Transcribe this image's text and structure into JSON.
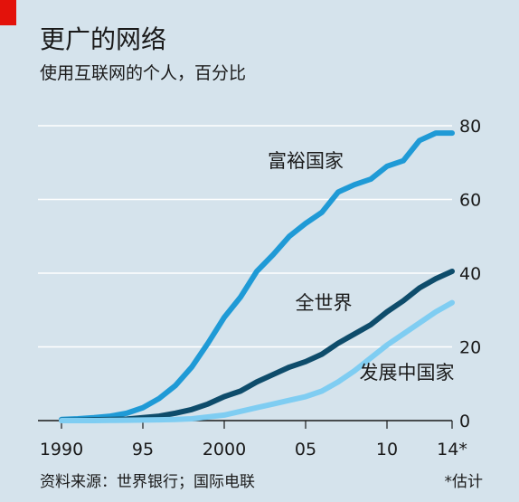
{
  "title": "更广的网络",
  "subtitle": "使用互联网的个人，百分比",
  "source": "资料来源：世界银行；国际电联",
  "footnote": "*估计",
  "colors": {
    "accent": "#e3120b",
    "background": "#d5e3ec"
  },
  "chart_data": {
    "type": "line",
    "x": [
      1990,
      1991,
      1992,
      1993,
      1994,
      1995,
      1996,
      1997,
      1998,
      1999,
      2000,
      2001,
      2002,
      2003,
      2004,
      2005,
      2006,
      2007,
      2008,
      2009,
      2010,
      2011,
      2012,
      2013,
      2014
    ],
    "x_tick_labels": [
      "1990",
      "95",
      "2000",
      "05",
      "10",
      "14*"
    ],
    "x_tick_values": [
      1990,
      1995,
      2000,
      2005,
      2010,
      2014
    ],
    "xlim": [
      1990,
      2014
    ],
    "ylim": [
      0,
      80
    ],
    "y_ticks": [
      0,
      20,
      40,
      60,
      80
    ],
    "y_tick_labels": [
      "0",
      "20",
      "40",
      "60",
      "80"
    ],
    "y_axis_side": "right",
    "grid": true,
    "series": [
      {
        "name": "富裕国家",
        "color": "#1f9ad6",
        "values": [
          0.3,
          0.5,
          0.8,
          1.2,
          2.0,
          3.5,
          6.0,
          9.5,
          14.5,
          21.0,
          28.0,
          33.5,
          40.5,
          45.0,
          50.0,
          53.5,
          56.5,
          62.0,
          64.0,
          65.5,
          69.0,
          70.5,
          76.0,
          78.0,
          78.0
        ]
      },
      {
        "name": "全世界",
        "color": "#0e4c6b",
        "values": [
          0.05,
          0.1,
          0.2,
          0.3,
          0.4,
          0.8,
          1.2,
          2.0,
          3.0,
          4.5,
          6.5,
          8.0,
          10.5,
          12.5,
          14.5,
          16.0,
          18.0,
          21.0,
          23.5,
          26.0,
          29.5,
          32.5,
          36.0,
          38.5,
          40.5
        ]
      },
      {
        "name": "发展中国家",
        "color": "#7fcdf2",
        "values": [
          0.0,
          0.0,
          0.0,
          0.05,
          0.1,
          0.15,
          0.2,
          0.3,
          0.5,
          1.0,
          1.5,
          2.5,
          3.5,
          4.5,
          5.5,
          6.5,
          8.0,
          10.5,
          13.5,
          17.0,
          20.5,
          23.5,
          26.5,
          29.5,
          32.0
        ]
      }
    ]
  }
}
